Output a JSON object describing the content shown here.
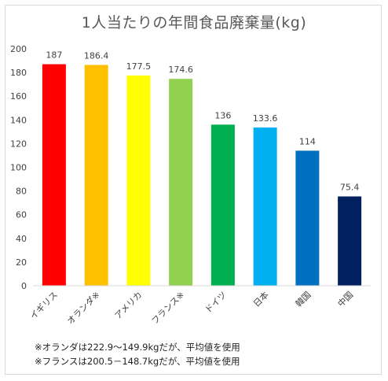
{
  "chart_data": {
    "type": "bar",
    "title": "1人当たりの年間食品廃棄量(kg)",
    "categories": [
      "イギリス",
      "オランダ※",
      "アメリカ",
      "フランス※",
      "ドイツ",
      "日本",
      "韓国",
      "中国"
    ],
    "values": [
      187,
      186.4,
      177.5,
      174.6,
      136,
      133.6,
      114,
      75.4
    ],
    "value_labels": [
      "187",
      "186.4",
      "177.5",
      "174.6",
      "136",
      "133.6",
      "114",
      "75.4"
    ],
    "bar_colors": [
      "#ff0000",
      "#ffc000",
      "#ffff00",
      "#92d050",
      "#00b050",
      "#00b0f0",
      "#0070c0",
      "#002060"
    ],
    "ylim": [
      0,
      200
    ],
    "yticks": [
      0,
      20,
      40,
      60,
      80,
      100,
      120,
      140,
      160,
      180,
      200
    ],
    "grid": false,
    "legend": "none",
    "notes": [
      "※オランダは222.9～149.9kgだが、平均値を使用",
      "※フランスは200.5－148.7kgだが、平均値を使用"
    ]
  }
}
